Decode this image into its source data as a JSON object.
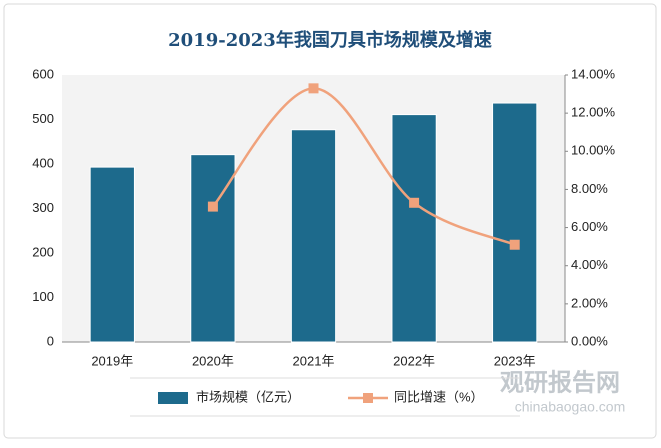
{
  "chart_data": {
    "type": "bar",
    "title": "2019-2023年我国刀具市场规模及增速",
    "categories": [
      "2019年",
      "2020年",
      "2021年",
      "2022年",
      "2023年"
    ],
    "series": [
      {
        "name": "市场规模（亿元）",
        "type": "bar",
        "color": "#1d6a8c",
        "values": [
          393,
          421,
          477,
          511,
          537
        ]
      },
      {
        "name": "同比增速（%）",
        "type": "line",
        "axis": "y2",
        "color": "#f0a27c",
        "values": [
          null,
          7.1,
          13.3,
          7.3,
          5.1
        ]
      }
    ],
    "ylim": [
      0,
      600
    ],
    "yticks": [
      0,
      100,
      200,
      300,
      400,
      500,
      600
    ],
    "y2lim": [
      0,
      14
    ],
    "y2ticks": [
      {
        "value": 0,
        "label": "0.00%"
      },
      {
        "value": 2,
        "label": "2.00%"
      },
      {
        "value": 4,
        "label": "4.00%"
      },
      {
        "value": 6,
        "label": "6.00%"
      },
      {
        "value": 8,
        "label": "8.00%"
      },
      {
        "value": 10,
        "label": "10.00%"
      },
      {
        "value": 12,
        "label": "12.00%"
      },
      {
        "value": 14,
        "label": "14.00%"
      }
    ],
    "grid": false,
    "legend": "bottom",
    "watermark": {
      "name": "观研报告网",
      "url": "chinabaogao.com"
    }
  }
}
